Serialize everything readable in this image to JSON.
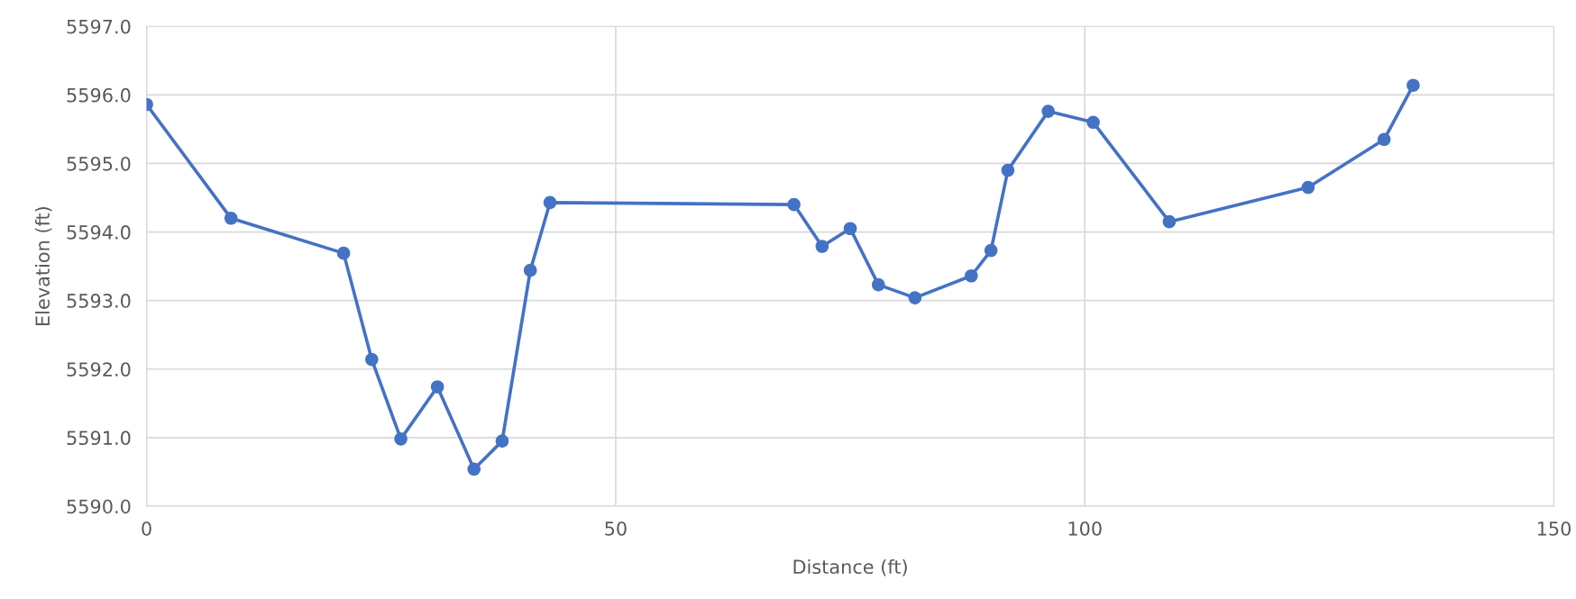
{
  "chart_data": {
    "type": "line",
    "xlabel": "Distance (ft)",
    "ylabel": "Elevation (ft)",
    "x": [
      0,
      9.0,
      21.0,
      24.0,
      27.1,
      31.0,
      34.9,
      37.9,
      40.9,
      43.0,
      69.0,
      72.0,
      75.0,
      78.0,
      81.9,
      87.9,
      90.0,
      91.8,
      96.1,
      100.9,
      109.0,
      123.8,
      131.9,
      135.0
    ],
    "series": [
      {
        "color": "#4472c4",
        "values": [
          5595.86,
          5594.2,
          5593.69,
          5592.14,
          5590.98,
          5591.74,
          5590.54,
          5590.95,
          5593.44,
          5594.43,
          5594.4,
          5593.79,
          5594.05,
          5593.23,
          5593.04,
          5593.36,
          5593.73,
          5594.9,
          5595.76,
          5595.6,
          5594.15,
          5594.65,
          5595.35,
          5596.14
        ]
      }
    ],
    "xlim": [
      0,
      150
    ],
    "xticks": [
      0,
      50,
      100,
      150
    ],
    "ylim": [
      5590,
      5597
    ],
    "yticks": [
      {
        "value": 5590,
        "label": "5590.0"
      },
      {
        "value": 5591,
        "label": "5591.0"
      },
      {
        "value": 5592,
        "label": "5592.0"
      },
      {
        "value": 5593,
        "label": "5593.0"
      },
      {
        "value": 5594,
        "label": "5594.0"
      },
      {
        "value": 5595,
        "label": "5595.0"
      },
      {
        "value": 5596,
        "label": "5596.0"
      },
      {
        "value": 5597,
        "label": "5597.0"
      }
    ],
    "grid": true,
    "marker": "circle",
    "line_style": "solid"
  }
}
